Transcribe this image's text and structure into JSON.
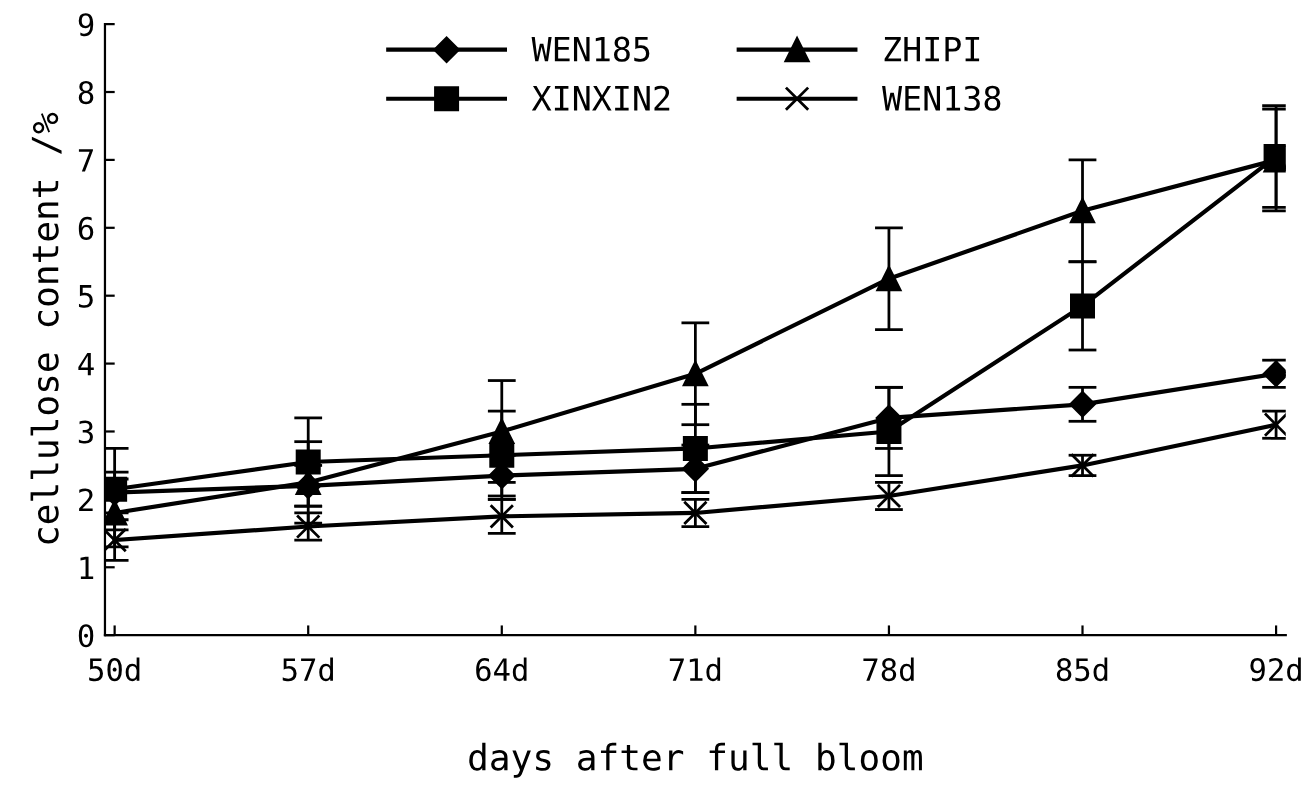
{
  "chart_data": {
    "type": "line",
    "xlabel": "days after full bloom",
    "ylabel": "cellulose content /%",
    "categories": [
      "50d",
      "57d",
      "64d",
      "71d",
      "78d",
      "85d",
      "92d"
    ],
    "ylim": [
      0,
      9
    ],
    "yticks": [
      0,
      1,
      2,
      3,
      4,
      5,
      6,
      7,
      8,
      9
    ],
    "grid": false,
    "legend": "top",
    "line_style": "solid",
    "series": [
      {
        "name": "WEN185",
        "color": "#000000",
        "marker": "diamond",
        "values": [
          2.1,
          2.2,
          2.35,
          2.45,
          3.2,
          3.4,
          3.85
        ],
        "errors": [
          0.3,
          0.3,
          0.3,
          0.35,
          0.45,
          0.25,
          0.2
        ]
      },
      {
        "name": "XINXIN2",
        "color": "#000000",
        "marker": "square",
        "values": [
          2.15,
          2.55,
          2.65,
          2.75,
          3.0,
          4.85,
          7.05
        ],
        "errors": [
          0.6,
          0.65,
          0.65,
          0.65,
          0.65,
          0.65,
          0.75
        ]
      },
      {
        "name": "ZHIPI",
        "color": "#000000",
        "marker": "triangle",
        "values": [
          1.8,
          2.25,
          3.0,
          3.85,
          5.25,
          6.25,
          7.0
        ],
        "errors": [
          0.5,
          0.6,
          0.75,
          0.75,
          0.75,
          0.75,
          0.75
        ]
      },
      {
        "name": "WEN138",
        "color": "#000000",
        "marker": "cross",
        "values": [
          1.4,
          1.6,
          1.75,
          1.8,
          2.05,
          2.5,
          3.1
        ],
        "errors": [
          0.3,
          0.2,
          0.25,
          0.2,
          0.2,
          0.15,
          0.2
        ]
      }
    ]
  }
}
